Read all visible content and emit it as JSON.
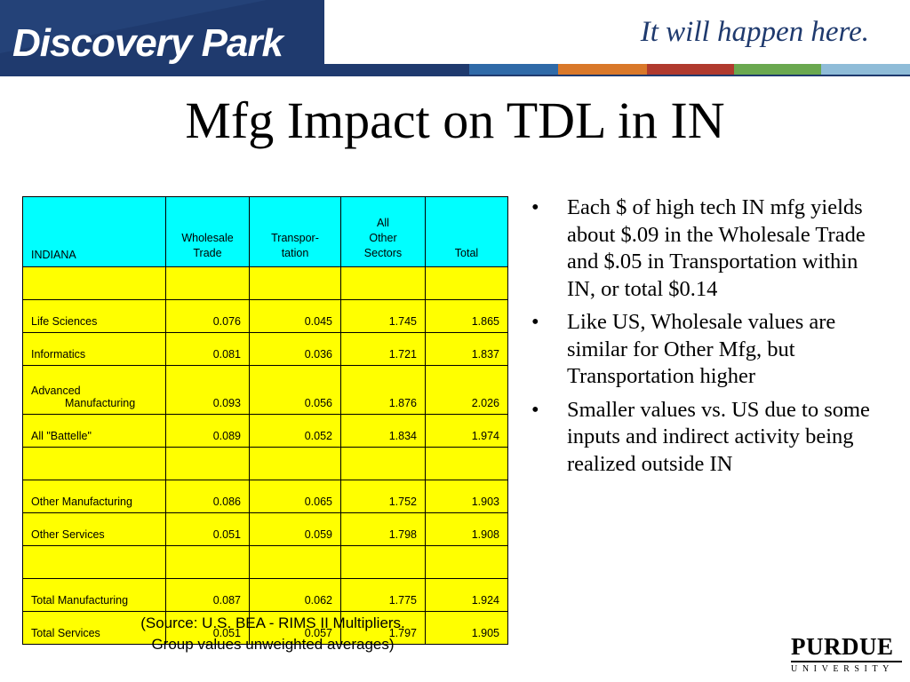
{
  "header": {
    "logo": "Discovery Park",
    "tagline": "It will happen here.",
    "colors": {
      "navy": "#1f3a6e",
      "blue": "#2f6aa8",
      "orange": "#d9782a",
      "red": "#b03a2e",
      "green": "#6aa84f",
      "teal": "#3f8fb0",
      "light_blue": "#8fbcd8"
    }
  },
  "title": "Mfg Impact on TDL in IN",
  "table": {
    "headers": [
      "INDIANA",
      "Wholesale Trade",
      "Transpor-tation",
      "All Other Sectors",
      "Total"
    ],
    "header_lines": {
      "c1": [
        "Wholesale",
        "Trade"
      ],
      "c2": [
        "Transpor-",
        "tation"
      ],
      "c3": [
        "All",
        "Other",
        "Sectors"
      ]
    },
    "rows": [
      {
        "label": "",
        "v": [
          "",
          "",
          "",
          ""
        ]
      },
      {
        "label": "Life Sciences",
        "v": [
          "0.076",
          "0.045",
          "1.745",
          "1.865"
        ]
      },
      {
        "label": "Informatics",
        "v": [
          "0.081",
          "0.036",
          "1.721",
          "1.837"
        ]
      },
      {
        "label": "Advanced Manufacturing",
        "label_lines": [
          "Advanced",
          "Manufacturing"
        ],
        "v": [
          "0.093",
          "0.056",
          "1.876",
          "2.026"
        ]
      },
      {
        "label": "All \"Battelle\"",
        "v": [
          "0.089",
          "0.052",
          "1.834",
          "1.974"
        ]
      },
      {
        "label": "",
        "v": [
          "",
          "",
          "",
          ""
        ]
      },
      {
        "label": "Other Manufacturing",
        "v": [
          "0.086",
          "0.065",
          "1.752",
          "1.903"
        ]
      },
      {
        "label": "Other Services",
        "v": [
          "0.051",
          "0.059",
          "1.798",
          "1.908"
        ]
      },
      {
        "label": "",
        "v": [
          "",
          "",
          "",
          ""
        ]
      },
      {
        "label": "Total Manufacturing",
        "v": [
          "0.087",
          "0.062",
          "1.775",
          "1.924"
        ]
      },
      {
        "label": "Total Services",
        "v": [
          "0.051",
          "0.057",
          "1.797",
          "1.905"
        ]
      }
    ]
  },
  "source": {
    "line1": "(Source: U.S. BEA - RIMS II Multipliers.",
    "line2": "Group values unweighted averages)"
  },
  "bullets": [
    "Each $ of high tech IN mfg yields about $.09 in the Wholesale Trade and $.05 in Transportation within IN, or total $0.14",
    "Like US, Wholesale values are similar for Other Mfg, but Transportation higher",
    "Smaller values vs. US due to some inputs and indirect activity being realized outside IN"
  ],
  "bullet_char": "•",
  "footer_logo": {
    "name": "PURDUE",
    "sub": "UNIVERSITY"
  }
}
